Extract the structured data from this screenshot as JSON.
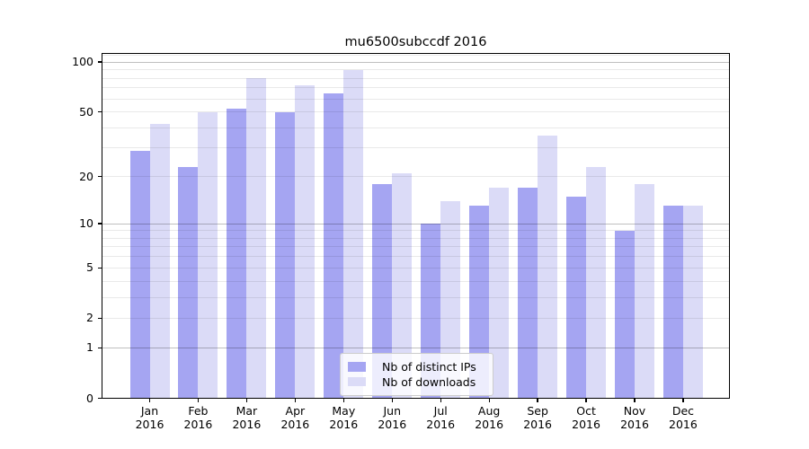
{
  "title": "mu6500subccdf 2016",
  "chart_data": {
    "type": "bar",
    "title": "mu6500subccdf 2016",
    "categories": [
      "Jan 2016",
      "Feb 2016",
      "Mar 2016",
      "Apr 2016",
      "May 2016",
      "Jun 2016",
      "Jul 2016",
      "Aug 2016",
      "Sep 2016",
      "Oct 2016",
      "Nov 2016",
      "Dec 2016"
    ],
    "series": [
      {
        "name": "Nb of distinct IPs",
        "color": "#a5a5f2",
        "values": [
          29,
          23,
          52,
          50,
          65,
          18,
          10,
          13,
          17,
          15,
          9,
          13
        ]
      },
      {
        "name": "Nb of downloads",
        "color": "#dbdbf7",
        "values": [
          42,
          50,
          80,
          72,
          89,
          21,
          14,
          17,
          36,
          23,
          18,
          13
        ]
      }
    ],
    "xlabel": "",
    "ylabel": "",
    "yscale": "log1p",
    "ylim": [
      0,
      113
    ],
    "yticks": [
      100,
      50,
      20,
      10,
      5,
      2,
      1,
      0
    ],
    "major_gridlines": [
      1,
      10,
      100
    ],
    "minor_gridlines": [
      2,
      3,
      4,
      5,
      6,
      7,
      8,
      9,
      20,
      30,
      40,
      50,
      60,
      70,
      80,
      90,
      110
    ],
    "grid": true,
    "legend_position": "lower center"
  }
}
